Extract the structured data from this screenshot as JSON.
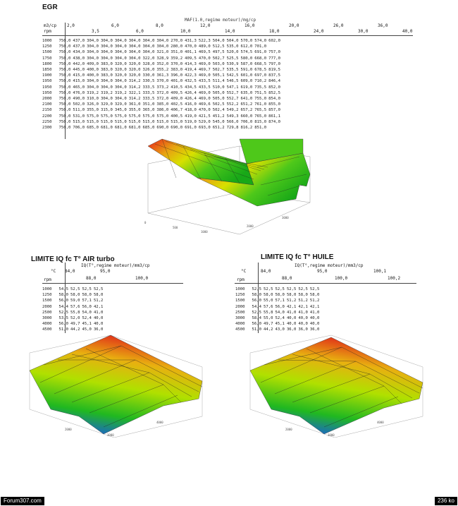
{
  "egr": {
    "title": "EGR",
    "header_axis": "MAF(1.0,regime moteur)/mg/cp",
    "unit_row": "m3/cp",
    "unit_rpm": "rpm",
    "cols_top": [
      "2,0",
      "6,0",
      "8,0",
      "12,0",
      "16,0",
      "20,0",
      "26,0",
      "36,0"
    ],
    "cols_bottom": [
      "3,5",
      "6,0",
      "10,0",
      "14,0",
      "18,0",
      "24,0",
      "30,0",
      "40,0"
    ],
    "rows": [
      [
        "1000",
        "750,0",
        "437,0",
        "304,0",
        "304,0",
        "304,0",
        "304,0",
        "304,0",
        "304,0",
        "270,0",
        "431,3",
        "522,3",
        "504,0",
        "504,0",
        "570,0",
        "574,0",
        "602,0"
      ],
      [
        "1250",
        "750,0",
        "437,0",
        "304,0",
        "304,0",
        "304,0",
        "304,0",
        "304,0",
        "304,0",
        "280,0",
        "470,0",
        "489,0",
        "512,5",
        "535,0",
        "612,0",
        "701,0",
        ""
      ],
      [
        "1500",
        "750,0",
        "434,0",
        "304,0",
        "304,0",
        "304,0",
        "304,0",
        "304,0",
        "321,0",
        "351,0",
        "401,1",
        "469,5",
        "497,5",
        "520,0",
        "574,5",
        "691,0",
        "757,0"
      ],
      [
        "1750",
        "750,0",
        "438,0",
        "304,0",
        "304,0",
        "304,0",
        "304,0",
        "322,0",
        "328,9",
        "359,2",
        "409,5",
        "470,0",
        "502,7",
        "525,5",
        "580,0",
        "668,0",
        "777,0"
      ],
      [
        "1800",
        "750,0",
        "442,0",
        "409,0",
        "383,0",
        "320,0",
        "320,0",
        "328,0",
        "352,0",
        "370,0",
        "414,3",
        "469,0",
        "503,0",
        "530,9",
        "587,0",
        "668,5",
        "797,0"
      ],
      [
        "1850",
        "750,0",
        "445,0",
        "400,0",
        "383,0",
        "320,0",
        "320,0",
        "326,0",
        "355,2",
        "383,0",
        "419,4",
        "469,7",
        "502,7",
        "535,5",
        "591,0",
        "678,5",
        "819,5"
      ],
      [
        "1900",
        "750,0",
        "415,0",
        "400,0",
        "383,0",
        "320,0",
        "320,0",
        "330,0",
        "361,3",
        "396,0",
        "422,3",
        "469,0",
        "505,1",
        "542,5",
        "601,0",
        "697,0",
        "837,5"
      ],
      [
        "1950",
        "750,0",
        "415,0",
        "304,0",
        "304,0",
        "304,0",
        "314,2",
        "330,5",
        "370,0",
        "401,0",
        "432,5",
        "433,5",
        "511,4",
        "546,5",
        "609,0",
        "710,2",
        "846,4"
      ],
      [
        "1950",
        "750,0",
        "465,0",
        "304,0",
        "304,0",
        "304,0",
        "314,2",
        "333,5",
        "373,2",
        "410,5",
        "434,5",
        "433,5",
        "510,0",
        "547,1",
        "619,0",
        "735,5",
        "852,0"
      ],
      [
        "1950",
        "750,0",
        "476,0",
        "319,2",
        "319,2",
        "319,2",
        "322,1",
        "333,5",
        "372,0",
        "409,5",
        "426,4",
        "469,0",
        "505,0",
        "552,7",
        "635,0",
        "751,5",
        "852,5"
      ],
      [
        "2000",
        "750,0",
        "490,0",
        "310,0",
        "304,0",
        "304,0",
        "314,2",
        "333,5",
        "372,0",
        "409,0",
        "426,4",
        "469,0",
        "505,0",
        "552,7",
        "641,0",
        "755,0",
        "854,0"
      ],
      [
        "2100",
        "750,0",
        "502,0",
        "326,0",
        "329,0",
        "329,0",
        "361,0",
        "351,0",
        "385,0",
        "402,5",
        "416,0",
        "469,6",
        "502,5",
        "552,2",
        "651,2",
        "761,0",
        "855,0"
      ],
      [
        "2150",
        "750,0",
        "511,0",
        "355,0",
        "315,0",
        "345,0",
        "355,0",
        "365,0",
        "386,0",
        "406,7",
        "418,0",
        "470,0",
        "502,4",
        "549,2",
        "657,2",
        "765,5",
        "857,0"
      ],
      [
        "2200",
        "750,0",
        "531,0",
        "575,0",
        "575,0",
        "575,0",
        "575,0",
        "575,0",
        "575,0",
        "400,5",
        "419,0",
        "421,5",
        "451,2",
        "549,3",
        "660,0",
        "765,0",
        "861,1"
      ],
      [
        "2250",
        "750,0",
        "515,0",
        "515,0",
        "515,0",
        "515,0",
        "515,0",
        "515,0",
        "515,0",
        "515,0",
        "519,0",
        "529,0",
        "545,0",
        "566,0",
        "706,0",
        "815,0",
        "874,0"
      ],
      [
        "2300",
        "750,0",
        "706,0",
        "685,0",
        "681,0",
        "681,0",
        "681,0",
        "685,0",
        "690,0",
        "690,0",
        "691,0",
        "693,0",
        "651,2",
        "729,8",
        "816,2",
        "851,0",
        ""
      ]
    ]
  },
  "air": {
    "title": "LIMITE IQ fc T° AIR turbo",
    "axis": "IQ(T°,regime moteur)/mm3/cp",
    "corner": "°C",
    "unit_rpm": "rpm",
    "cols_top": [
      "84,0",
      "95,0"
    ],
    "cols_bottom": [
      "88,0",
      "100,0"
    ],
    "rows": [
      [
        "1000",
        "54,5",
        "52,5",
        "52,5",
        "52,5"
      ],
      [
        "1250",
        "58,0",
        "58,0",
        "58,0",
        "58,0"
      ],
      [
        "1500",
        "56,0",
        "59,0",
        "57,1",
        "51,2"
      ],
      [
        "2000",
        "54,4",
        "57,6",
        "56,0",
        "42,1"
      ],
      [
        "2500",
        "52,5",
        "55,8",
        "54,0",
        "41,0"
      ],
      [
        "3000",
        "53,5",
        "52,0",
        "52,4",
        "40,0"
      ],
      [
        "4000",
        "56,0",
        "49,7",
        "45,1",
        "40,0"
      ],
      [
        "4500",
        "51,0",
        "44,2",
        "45,0",
        "36,0"
      ]
    ]
  },
  "huile": {
    "title": "LIMITE IQ fc T° HUILE",
    "axis": "IQ(T°,regime moteur)/mm3/cp",
    "corner": "°C",
    "unit_rpm": "rpm",
    "cols_top": [
      "84,0",
      "95,0",
      "100,1"
    ],
    "cols_bottom": [
      "88,0",
      "100,0",
      "100,2"
    ],
    "rows": [
      [
        "1000",
        "52,5",
        "52,5",
        "52,5",
        "52,5",
        "52,5",
        "52,5"
      ],
      [
        "1250",
        "58,0",
        "58,0",
        "58,0",
        "58,0",
        "58,0",
        "58,0"
      ],
      [
        "1500",
        "56,0",
        "55,0",
        "57,1",
        "51,2",
        "51,2",
        "51,2"
      ],
      [
        "2000",
        "54,4",
        "57,6",
        "56,0",
        "42,1",
        "42,1",
        "42,1"
      ],
      [
        "2500",
        "52,5",
        "55,8",
        "54,0",
        "41,0",
        "41,0",
        "41,0"
      ],
      [
        "3000",
        "58,4",
        "55,0",
        "52,4",
        "40,0",
        "40,0",
        "40,0"
      ],
      [
        "4000",
        "56,0",
        "49,7",
        "45,1",
        "40,0",
        "40,0",
        "40,0"
      ],
      [
        "4500",
        "51,0",
        "44,2",
        "43,0",
        "36,0",
        "36,0",
        "36,0"
      ]
    ]
  },
  "footer": {
    "left": "Forum307.com",
    "right": "236 ko"
  },
  "colors": {
    "surface_high": "#e02a1a",
    "surface_mid": "#e8e000",
    "surface_low": "#1ab21a",
    "surface_min": "#1a6bd8"
  }
}
